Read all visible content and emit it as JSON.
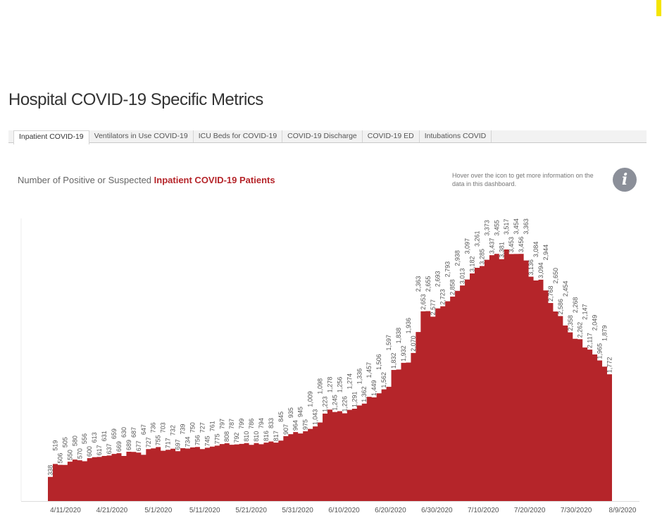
{
  "page_title": "Hospital COVID-19 Specific Metrics",
  "tabs": [
    {
      "label": "Inpatient COVID-19",
      "active": true
    },
    {
      "label": "Ventilators in Use COVID-19"
    },
    {
      "label": "ICU Beds for COVID-19"
    },
    {
      "label": "COVID-19 Discharge"
    },
    {
      "label": "COVID-19 ED"
    },
    {
      "label": "Intubations COVID"
    }
  ],
  "subtitle_prefix": "Number of Positive or Suspected ",
  "subtitle_highlight": "Inpatient COVID-19 Patients",
  "hover_note": "Hover over the icon to get more information on the data in this dashboard.",
  "info_icon": {
    "icon": "info-icon",
    "glyph": "i"
  },
  "colors": {
    "accent": "#b5252a",
    "info": "#8b8f99"
  },
  "chart_data": {
    "type": "area",
    "step": true,
    "title": "",
    "xlabel": "",
    "ylabel": "",
    "x_ticks": [
      "4/11/2020",
      "4/21/2020",
      "5/1/2020",
      "5/11/2020",
      "5/21/2020",
      "5/31/2020",
      "6/10/2020",
      "6/20/2020",
      "6/30/2020",
      "7/10/2020",
      "7/20/2020",
      "7/30/2020",
      "8/9/2020"
    ],
    "ylim": [
      0,
      3600
    ],
    "grid": false,
    "color": "#b5252a",
    "values": [
      338,
      519,
      506,
      505,
      550,
      580,
      570,
      556,
      600,
      613,
      617,
      631,
      637,
      659,
      669,
      630,
      689,
      687,
      677,
      647,
      727,
      736,
      755,
      703,
      717,
      732,
      697,
      739,
      734,
      750,
      756,
      727,
      745,
      761,
      775,
      797,
      808,
      787,
      792,
      799,
      810,
      786,
      810,
      794,
      816,
      833,
      817,
      845,
      907,
      935,
      964,
      945,
      975,
      1009,
      1043,
      1098,
      1223,
      1278,
      1245,
      1256,
      1226,
      1274,
      1291,
      1336,
      1362,
      1457,
      1449,
      1506,
      1562,
      1597,
      1832,
      1838,
      1932,
      1936,
      2070,
      2363,
      2653,
      2655,
      2577,
      2693,
      2723,
      2793,
      2858,
      2938,
      3013,
      3097,
      3182,
      3261,
      3285,
      3373,
      3437,
      3455,
      3381,
      3517,
      3453,
      3454,
      3456,
      3363,
      3136,
      3084,
      3094,
      2944,
      2768,
      2650,
      2586,
      2454,
      2358,
      2268,
      2262,
      2147,
      2117,
      2049,
      1965,
      1879,
      1772
    ]
  }
}
